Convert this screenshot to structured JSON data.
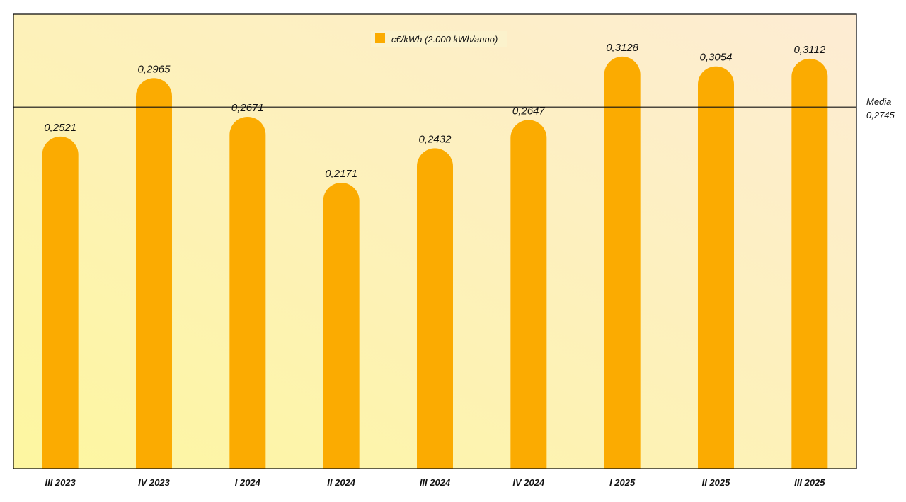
{
  "chart_data": {
    "type": "bar",
    "categories": [
      "III 2023",
      "IV 2023",
      "I 2024",
      "II 2024",
      "III 2024",
      "IV 2024",
      "I 2025",
      "II 2025",
      "III 2025"
    ],
    "series": [
      {
        "name": "c€/kWh (2.000 kWh/anno)",
        "values": [
          0.2521,
          0.2965,
          0.2671,
          0.2171,
          0.2432,
          0.2647,
          0.3128,
          0.3054,
          0.3112
        ],
        "value_labels": [
          "0,2521",
          "0,2965",
          "0,2671",
          "0,2171",
          "0,2432",
          "0,2647",
          "0,3128",
          "0,3054",
          "0,3112"
        ]
      }
    ],
    "reference_line": {
      "label": "Media",
      "value": 0.2745,
      "value_label": "0,2745"
    },
    "ylim": [
      0,
      0.345
    ],
    "title": "",
    "xlabel": "",
    "ylabel": "",
    "legend_position": "top-center",
    "grid": false
  },
  "colors": {
    "bar": "#fbab01",
    "background_start": "#fdf6a0",
    "background_end": "#fdecd4",
    "frame": "#111111",
    "legend_box_bg": "#fbf2cc"
  }
}
